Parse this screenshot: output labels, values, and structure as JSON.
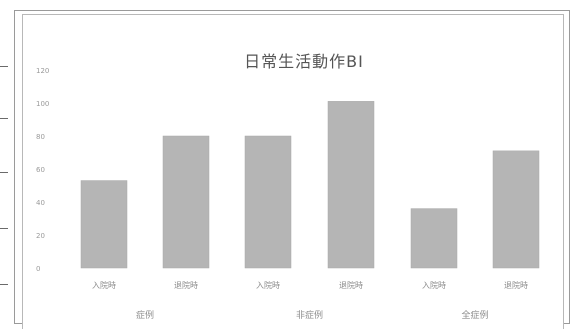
{
  "chart_data": {
    "type": "bar",
    "title": "日常生活動作BI",
    "xlabel": "",
    "ylabel": "",
    "ylim": [
      0,
      120
    ],
    "yticks": [
      "120",
      "100",
      "80",
      "60",
      "40",
      "20",
      "0"
    ],
    "grid": false,
    "legend": "none",
    "bar_color": "#b5b5b5",
    "categories": [
      "入院時",
      "退院時",
      "入院時",
      "退院時",
      "入院時",
      "退院時"
    ],
    "groups": [
      {
        "label": "症例",
        "span": [
          0,
          1
        ]
      },
      {
        "label": "非症例",
        "span": [
          2,
          3
        ]
      },
      {
        "label": "全症例",
        "span": [
          4,
          5
        ]
      }
    ],
    "values": [
      53,
      80,
      80,
      101,
      36,
      71
    ]
  }
}
